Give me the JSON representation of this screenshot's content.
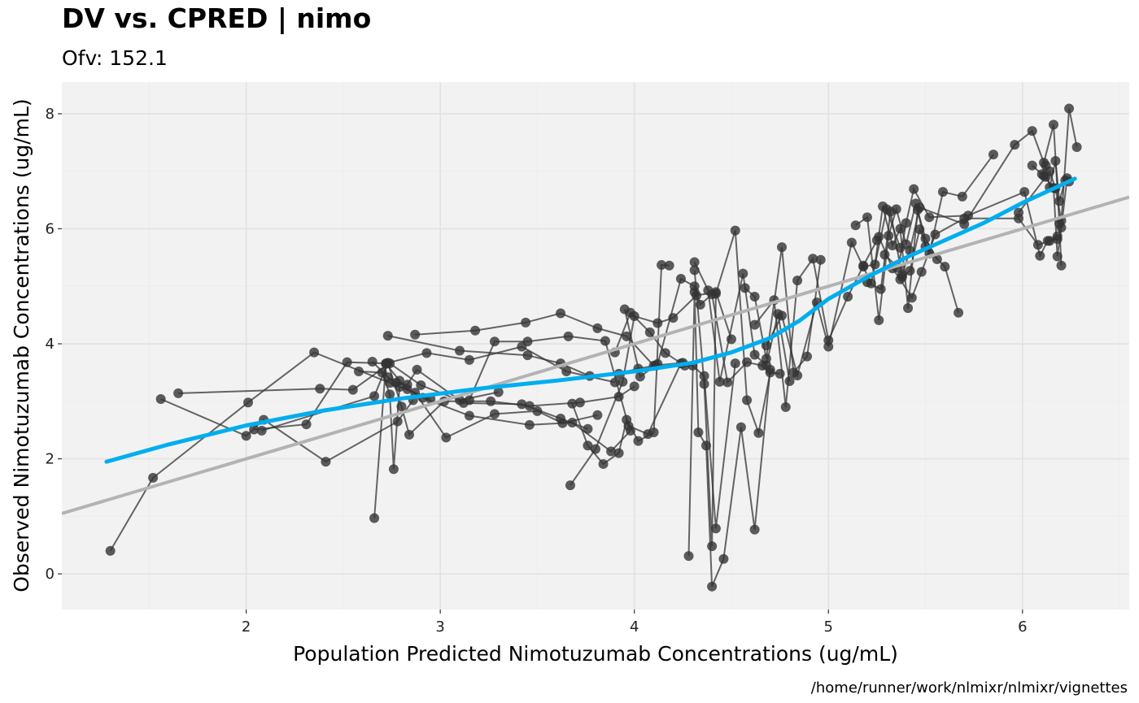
{
  "chart_data": {
    "type": "scatter",
    "title": "DV vs. CPRED | nimo",
    "subtitle": "Ofv: 152.1",
    "xlabel": "Population Predicted Nimotuzumab Concentrations (ug/mL)",
    "ylabel": "Observed Nimotuzumab Concentrations (ug/mL)",
    "caption": "/home/runner/work/nlmixr/nlmixr/vignettes",
    "xlim": [
      1.05,
      6.55
    ],
    "ylim": [
      -0.62,
      8.55
    ],
    "xticks": [
      2,
      3,
      4,
      5,
      6
    ],
    "yticks": [
      0,
      2,
      4,
      6,
      8
    ],
    "grid": true,
    "colors": {
      "panel": "#f2f2f2",
      "grid": "#e2e2e2",
      "points": "#333333",
      "smooth": "#00aeef",
      "identity": "#b3b3b3"
    },
    "identity_line": {
      "intercept": 0,
      "slope": 1
    },
    "smooth_line": {
      "x": [
        1.28,
        1.6,
        2.0,
        2.4,
        2.8,
        3.2,
        3.6,
        4.0,
        4.3,
        4.5,
        4.7,
        4.85,
        5.0,
        5.2,
        5.4,
        5.6,
        5.8,
        6.0,
        6.27
      ],
      "y": [
        1.95,
        2.25,
        2.58,
        2.84,
        3.05,
        3.22,
        3.36,
        3.52,
        3.67,
        3.85,
        4.1,
        4.4,
        4.78,
        5.16,
        5.5,
        5.8,
        6.1,
        6.45,
        6.87
      ]
    },
    "subjects": [
      {
        "x": [
          1.3,
          1.52,
          2.01,
          2.35,
          2.74,
          2.95
        ],
        "y": [
          0.4,
          1.67,
          2.98,
          3.85,
          3.32,
          3.04
        ]
      },
      {
        "x": [
          1.56,
          2.0,
          2.09,
          2.41,
          2.78,
          2.86
        ],
        "y": [
          3.04,
          2.4,
          2.68,
          1.95,
          2.65,
          3.02
        ]
      },
      {
        "x": [
          1.65,
          2.38,
          2.55,
          2.74,
          2.9,
          3.1,
          3.3
        ],
        "y": [
          3.14,
          3.22,
          3.2,
          3.66,
          3.28,
          3.02,
          3.16
        ]
      },
      {
        "x": [
          2.04,
          2.31,
          2.52,
          2.72,
          2.93,
          3.15,
          3.42,
          3.65,
          3.9
        ],
        "y": [
          2.51,
          2.6,
          3.68,
          3.66,
          3.84,
          3.72,
          3.95,
          3.52,
          3.33
        ]
      },
      {
        "x": [
          2.08,
          2.66,
          2.73,
          2.8,
          2.84,
          3.02,
          3.26,
          3.46,
          3.72,
          3.92,
          4.0
        ],
        "y": [
          2.49,
          3.09,
          3.67,
          2.91,
          2.42,
          3.0,
          3.0,
          2.92,
          2.98,
          3.08,
          3.26
        ]
      },
      {
        "x": [
          2.58,
          2.7,
          2.74,
          2.76,
          2.79,
          2.87,
          3.03,
          3.28,
          3.5,
          3.63,
          3.81
        ],
        "y": [
          3.52,
          3.5,
          3.12,
          1.82,
          3.25,
          3.15,
          2.37,
          2.78,
          2.83,
          2.62,
          2.76
        ]
      },
      {
        "x": [
          2.65,
          2.73,
          2.77,
          2.83,
          2.88,
          3.12,
          3.42,
          3.62,
          3.76
        ],
        "y": [
          3.69,
          3.42,
          3.32,
          3.29,
          3.55,
          2.97,
          2.95,
          2.7,
          2.52
        ]
      },
      {
        "x": [
          2.66,
          2.72,
          2.79,
          2.83,
          2.91,
          3.15,
          3.46,
          3.68,
          3.88,
          3.98
        ],
        "y": [
          0.97,
          3.65,
          3.36,
          3.21,
          3.06,
          2.75,
          2.59,
          2.63,
          2.13,
          2.49
        ]
      },
      {
        "x": [
          2.73,
          3.1,
          3.45,
          3.62,
          3.77,
          3.92,
          4.02,
          4.11
        ],
        "y": [
          4.14,
          3.88,
          3.8,
          3.66,
          3.44,
          3.48,
          3.57,
          3.62
        ]
      },
      {
        "x": [
          2.87,
          3.18,
          3.44,
          3.62,
          3.81,
          3.96,
          4.1,
          4.25
        ],
        "y": [
          4.16,
          4.23,
          4.37,
          4.53,
          4.27,
          4.13,
          3.62,
          3.67
        ]
      },
      {
        "x": [
          3.15,
          3.28,
          3.45,
          3.66,
          3.85,
          3.97,
          4.07,
          4.24
        ],
        "y": [
          3.02,
          4.04,
          4.04,
          4.13,
          4.05,
          2.57,
          2.43,
          3.66
        ]
      },
      {
        "x": [
          3.68,
          3.76,
          3.84,
          3.92,
          3.96,
          4.02,
          4.1,
          4.14,
          4.18
        ],
        "y": [
          2.96,
          2.23,
          1.91,
          2.1,
          2.68,
          2.31,
          2.46,
          5.37,
          5.36
        ]
      },
      {
        "x": [
          3.67,
          3.8,
          3.94,
          4.0,
          4.12,
          4.2,
          4.32,
          4.42,
          4.5
        ],
        "y": [
          1.54,
          2.17,
          3.34,
          4.48,
          4.36,
          4.45,
          4.84,
          4.9,
          4.08
        ]
      },
      {
        "x": [
          3.9,
          3.98,
          4.08,
          4.16,
          4.26,
          4.3,
          4.36,
          4.42,
          4.52
        ],
        "y": [
          3.85,
          4.54,
          4.2,
          3.84,
          3.62,
          3.62,
          3.44,
          0.79,
          3.66
        ]
      },
      {
        "x": [
          3.95,
          4.03,
          4.12,
          4.24,
          4.31,
          4.34,
          4.4,
          4.48,
          4.58,
          4.66
        ],
        "y": [
          4.6,
          3.43,
          3.65,
          5.13,
          5.0,
          4.68,
          4.86,
          3.33,
          3.68,
          3.62
        ]
      },
      {
        "x": [
          4.28,
          4.31,
          4.33,
          4.37,
          4.4,
          4.46,
          4.55,
          4.62,
          4.7
        ],
        "y": [
          0.31,
          4.9,
          2.46,
          2.23,
          -0.22,
          0.26,
          2.55,
          0.77,
          3.55
        ]
      },
      {
        "x": [
          4.31,
          4.36,
          4.4,
          4.42,
          4.52,
          4.58,
          4.64,
          4.7,
          4.75
        ],
        "y": [
          5.28,
          3.3,
          0.48,
          4.87,
          5.97,
          3.02,
          2.45,
          3.5,
          3.48
        ]
      },
      {
        "x": [
          4.31,
          4.38,
          4.44,
          4.56,
          4.62,
          4.68,
          4.74,
          4.8
        ],
        "y": [
          5.42,
          4.93,
          3.34,
          5.22,
          3.81,
          3.63,
          4.52,
          3.35
        ]
      },
      {
        "x": [
          4.57,
          4.62,
          4.68,
          4.76,
          4.82,
          4.89,
          4.96
        ],
        "y": [
          4.97,
          4.82,
          3.74,
          5.68,
          3.5,
          3.78,
          5.46
        ]
      },
      {
        "x": [
          4.62,
          4.72,
          4.78,
          4.84,
          4.92,
          5.0,
          5.1,
          5.18,
          5.25
        ],
        "y": [
          4.33,
          4.76,
          2.9,
          5.1,
          5.48,
          4.06,
          4.82,
          5.36,
          5.8
        ]
      },
      {
        "x": [
          4.68,
          4.76,
          4.84,
          4.94,
          5.0,
          5.12,
          5.22,
          5.3,
          5.37
        ],
        "y": [
          3.97,
          4.49,
          3.45,
          4.72,
          3.95,
          5.76,
          5.05,
          6.34,
          5.67
        ]
      },
      {
        "x": [
          5.14,
          5.2,
          5.26,
          5.31,
          5.35,
          5.4,
          5.45,
          5.5,
          5.56
        ],
        "y": [
          6.06,
          6.2,
          4.41,
          5.88,
          6.34,
          5.73,
          6.44,
          5.83,
          5.47
        ]
      },
      {
        "x": [
          5.18,
          5.24,
          5.28,
          5.33,
          5.37,
          5.41,
          5.46,
          5.5,
          5.6,
          5.67
        ],
        "y": [
          5.34,
          5.38,
          6.39,
          5.71,
          6.0,
          4.62,
          6.33,
          5.69,
          5.34,
          4.54
        ]
      },
      {
        "x": [
          5.2,
          5.27,
          5.32,
          5.38,
          5.42,
          5.47,
          5.52,
          5.59,
          5.69,
          5.85
        ],
        "y": [
          5.07,
          4.95,
          6.3,
          5.16,
          5.27,
          5.99,
          5.57,
          6.64,
          6.56,
          7.29
        ]
      },
      {
        "x": [
          5.26,
          5.33,
          5.37,
          5.43,
          5.48,
          5.55,
          5.7,
          5.98,
          6.08,
          6.14,
          6.18
        ],
        "y": [
          5.86,
          5.31,
          5.12,
          4.8,
          5.25,
          5.9,
          6.18,
          6.18,
          5.72,
          5.79,
          5.87
        ]
      },
      {
        "x": [
          5.29,
          5.36,
          5.4,
          5.44,
          5.52,
          5.72,
          6.01,
          6.09,
          6.13,
          6.18
        ],
        "y": [
          5.55,
          5.32,
          6.1,
          6.69,
          6.2,
          6.23,
          6.64,
          5.53,
          5.79,
          5.82
        ]
      },
      {
        "x": [
          5.38,
          5.42,
          5.47,
          5.7,
          5.96,
          6.05,
          6.11,
          6.16,
          6.19,
          6.2
        ],
        "y": [
          5.2,
          5.62,
          6.37,
          6.08,
          7.46,
          7.7,
          7.15,
          7.81,
          6.09,
          5.36
        ]
      },
      {
        "x": [
          5.98,
          6.12,
          6.14,
          6.17,
          6.2,
          6.24,
          6.28
        ],
        "y": [
          6.28,
          6.9,
          7.0,
          6.7,
          6.14,
          8.09,
          7.42
        ]
      },
      {
        "x": [
          6.1,
          6.12,
          6.14,
          6.17,
          6.19,
          6.22,
          6.24
        ],
        "y": [
          6.95,
          7.1,
          6.72,
          7.18,
          6.48,
          6.84,
          6.82
        ]
      },
      {
        "x": [
          6.05,
          6.11,
          6.16,
          6.18,
          6.2,
          6.23
        ],
        "y": [
          7.1,
          6.92,
          6.71,
          5.52,
          6.02,
          6.88
        ]
      }
    ]
  }
}
